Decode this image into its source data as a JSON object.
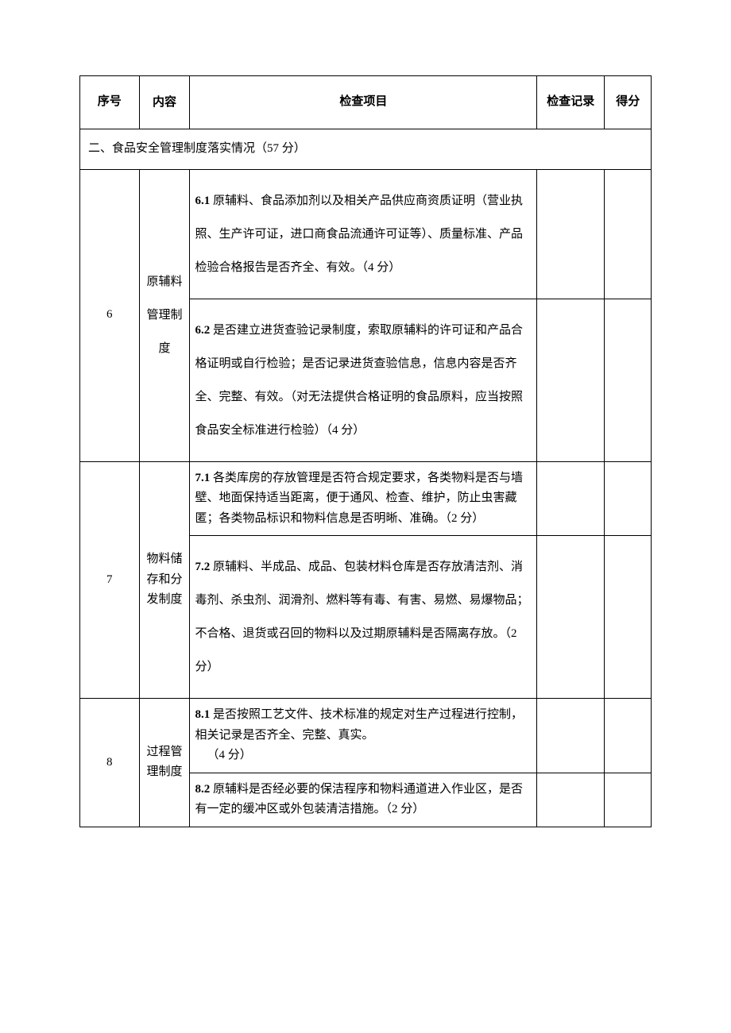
{
  "headers": {
    "seq": "序号",
    "content": "内容",
    "item": "检查项目",
    "record": "检查记录",
    "score": "得分"
  },
  "section_title": "二、食品安全管理制度落实情况（57 分）",
  "rows": [
    {
      "seq": "6",
      "content": "原辅料管理制度",
      "items": [
        "6.1 原辅料、食品添加剂以及相关产品供应商资质证明（营业执照、生产许可证，进口商食品流通许可证等）、质量标准、产品检验合格报告是否齐全、有效。（4 分）",
        "6.2 是否建立进货查验记录制度，索取原辅料的许可证和产品合格证明或自行检验；是否记录进货查验信息，信息内容是否齐全、完整、有效。（对无法提供合格证明的食品原料，应当按照食品安全标准进行检验）（4 分）"
      ]
    },
    {
      "seq": "7",
      "content": "物料储存和分发制度",
      "items": [
        "7.1 各类库房的存放管理是否符合规定要求，各类物料是否与墙壁、地面保持适当距离，便于通风、检查、维护，防止虫害藏匿；各类物品标识和物料信息是否明晰、准确。（2 分）",
        "7.2 原辅料、半成品、成品、包装材料仓库是否存放清洁剂、消毒剂、杀虫剂、润滑剂、燃料等有毒、有害、易燃、易爆物品；不合格、退货或召回的物料以及过期原辅料是否隔离存放。（2 分）"
      ]
    },
    {
      "seq": "8",
      "content": "过程管理制度",
      "items": [
        "8.1 是否按照工艺文件、技术标准的规定对生产过程进行控制，相关记录是否齐全、完整、真实。\n（4 分）",
        "8.2 原辅料是否经必要的保洁程序和物料通道进入作业区，是否有一定的缓冲区或外包装清洁措施。（2 分）"
      ]
    }
  ],
  "colors": {
    "border": "#000000",
    "background": "#ffffff",
    "text": "#000000"
  },
  "font_sizes": {
    "cell": 15
  }
}
